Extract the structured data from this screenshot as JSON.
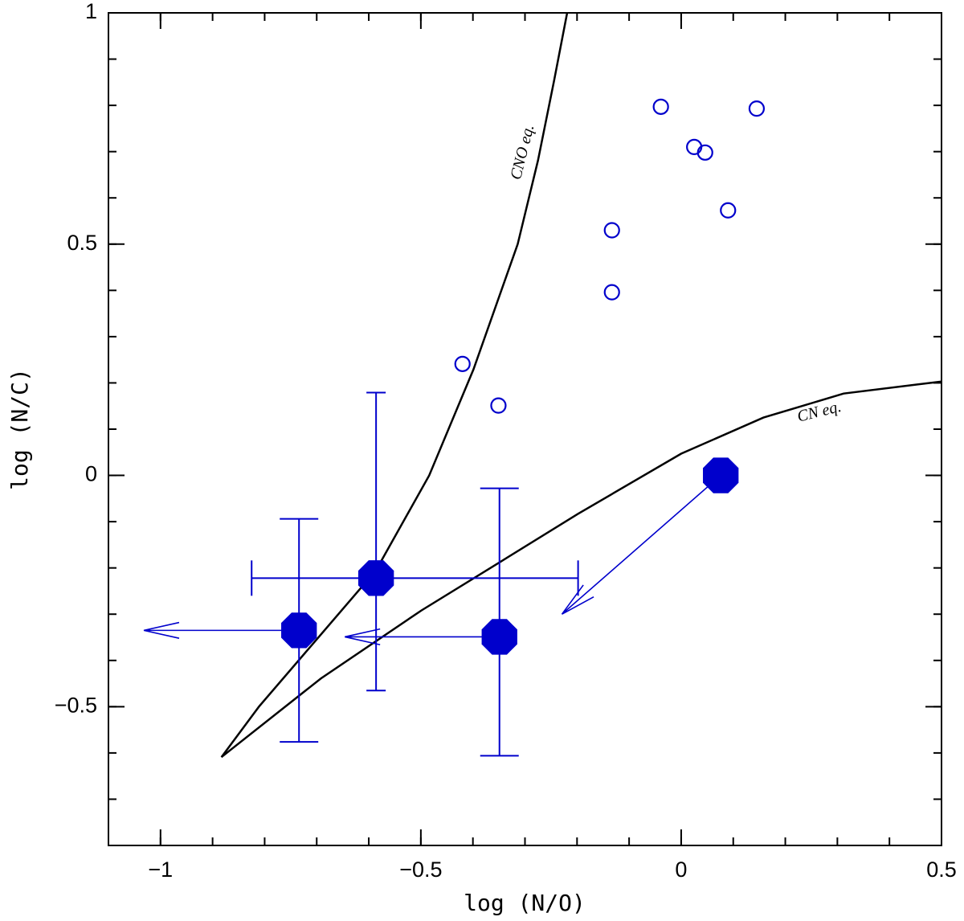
{
  "chart_data": {
    "type": "scatter",
    "xlabel": "log (N/O)",
    "ylabel": "log (N/C)",
    "xlim": [
      -1.1,
      0.5
    ],
    "ylim": [
      -0.8,
      1
    ],
    "xticks": [
      {
        "value": -1,
        "label": "−1"
      },
      {
        "value": -0.5,
        "label": "−0.5"
      },
      0,
      0.5
    ],
    "yticks": [
      {
        "value": -0.5,
        "label": "−0.5"
      },
      0,
      0.5,
      1
    ],
    "minor_tick_step": 0.1,
    "series": [
      {
        "marker": "open",
        "color": "#0000cc",
        "x": [
          -0.42,
          -0.351,
          -0.133,
          -0.133,
          -0.039,
          0.025,
          0.046,
          0.09,
          0.145
        ],
        "values": [
          0.241,
          0.151,
          0.53,
          0.396,
          0.797,
          0.71,
          0.698,
          0.573,
          0.793
        ]
      },
      {
        "marker": "filled",
        "color": "#0000cc",
        "x": [
          -0.734,
          -0.586,
          -0.349,
          0.076
        ],
        "values": [
          -0.335,
          -0.222,
          -0.349,
          0
        ],
        "x_low": [
          null,
          -0.825,
          null,
          null
        ],
        "x_high": [
          null,
          -0.198,
          null,
          null
        ],
        "y_low": [
          -0.576,
          -0.465,
          -0.606,
          null
        ],
        "y_high": [
          -0.094,
          0.179,
          -0.028,
          null
        ],
        "arrow_x": [
          -1.032,
          null,
          -0.646,
          -0.229
        ],
        "arrow_y": [
          -0.335,
          null,
          -0.349,
          -0.3
        ]
      }
    ],
    "curves": [
      {
        "label": "CNO eq.",
        "color": "#000000",
        "x": [
          -0.883,
          -0.811,
          -0.692,
          -0.586,
          -0.484,
          -0.399,
          -0.314,
          -0.275,
          -0.244,
          -0.219
        ],
        "values": [
          -0.609,
          -0.5,
          -0.344,
          -0.205,
          0,
          0.229,
          0.5,
          0.681,
          0.854,
          1
        ]
      },
      {
        "label": "CN eq.",
        "color": "#000000",
        "x": [
          -0.883,
          -0.692,
          -0.499,
          -0.349,
          -0.198,
          0,
          0.158,
          0.312,
          0.5
        ],
        "values": [
          -0.609,
          -0.439,
          -0.292,
          -0.188,
          -0.083,
          0.047,
          0.125,
          0.177,
          0.203
        ]
      }
    ]
  }
}
